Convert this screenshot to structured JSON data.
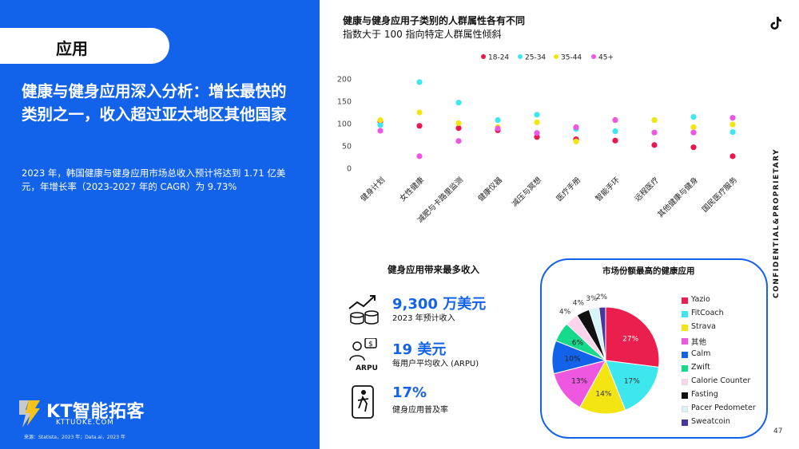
{
  "left": {
    "section_label": "应用",
    "headline": "健康与健身应用深入分析：增长最快的类别之一，收入超过亚太地区其他国家",
    "subtext": "2023 年，韩国健康与健身应用市场总收入预计将达到 1.71 亿美元，年增长率（2023-2027 年的 CAGR）为 9.73%",
    "logo_text": "KT智能拓客",
    "logo_sub": "KTTUOKE.COM",
    "source": "来源：Statista，2023 年；Data.ai，2023 年"
  },
  "header": {
    "vertical_text": "CONFIDENTIAL&PROPRIETARY",
    "page_number": "47",
    "brand_icon": "tiktok-icon"
  },
  "scatter": {
    "title": "健康与健身应用子类别的人群属性各有不同",
    "subtitle": "指数大于 100 指向特定人群属性倾斜"
  },
  "revenue": {
    "title": "健身应用带来最多收入",
    "stats": [
      {
        "value": "9,300 万美元",
        "label": "2023 年预计收入",
        "icon": "growth-chart-coins-icon"
      },
      {
        "value": "19 美元",
        "label": "每用户平均收入 (ARPU)",
        "icon": "arpu-user-icon",
        "icon_text": "ARPU"
      },
      {
        "value": "17%",
        "label": "健身应用普及率",
        "icon": "phone-fitness-icon"
      }
    ]
  },
  "pie": {
    "title": "市场份额最高的健康应用"
  },
  "chart_data": [
    {
      "type": "scatter",
      "title": "健康与健身应用子类别的人群属性各有不同",
      "subtitle": "指数大于 100 指向特定人群属性倾斜",
      "categories": [
        "健身计划",
        "女性健康",
        "减肥与卡路里监测",
        "健康仪器",
        "减压与冥想",
        "医疗手册",
        "智能手环",
        "远程医疗",
        "其他健康与健身",
        "国民医疗服务"
      ],
      "ylim": [
        0,
        200
      ],
      "yticks": [
        0,
        50,
        100,
        150,
        200
      ],
      "legend_position": "top",
      "series": [
        {
          "name": "18-24",
          "color": "#e8194f",
          "values": [
            105,
            95,
            90,
            85,
            70,
            65,
            62,
            52,
            47,
            27
          ]
        },
        {
          "name": "25-34",
          "color": "#3ee6ee",
          "values": [
            97,
            193,
            147,
            108,
            120,
            88,
            83,
            108,
            115,
            81
          ]
        },
        {
          "name": "35-44",
          "color": "#f3e512",
          "values": [
            108,
            125,
            101,
            92,
            103,
            60,
            108,
            108,
            92,
            98
          ]
        },
        {
          "name": "45+",
          "color": "#ee58e1",
          "values": [
            84,
            27,
            61,
            89,
            79,
            92,
            108,
            80,
            80,
            113
          ]
        }
      ]
    },
    {
      "type": "pie",
      "title": "市场份额最高的健康应用",
      "legend_position": "right",
      "slices": [
        {
          "label": "Yazio",
          "value": 27,
          "color": "#ea1f4e"
        },
        {
          "label": "FitCoach",
          "value": 17,
          "color": "#3ee6ee"
        },
        {
          "label": "Strava",
          "value": 14,
          "color": "#f3e512"
        },
        {
          "label": "其他",
          "value": 13,
          "color": "#ee58e1"
        },
        {
          "label": "Calm",
          "value": 10,
          "color": "#1363ea"
        },
        {
          "label": "Zwift",
          "value": 6,
          "color": "#17d98c"
        },
        {
          "label": "Calorie Counter",
          "value": 4,
          "color": "#fbd3ea"
        },
        {
          "label": "Fasting",
          "value": 4,
          "color": "#111111"
        },
        {
          "label": "Pacer Pedometer",
          "value": 3,
          "color": "#d4f6f7"
        },
        {
          "label": "Sweatcoin",
          "value": 2,
          "color": "#4b35a0"
        }
      ]
    }
  ]
}
